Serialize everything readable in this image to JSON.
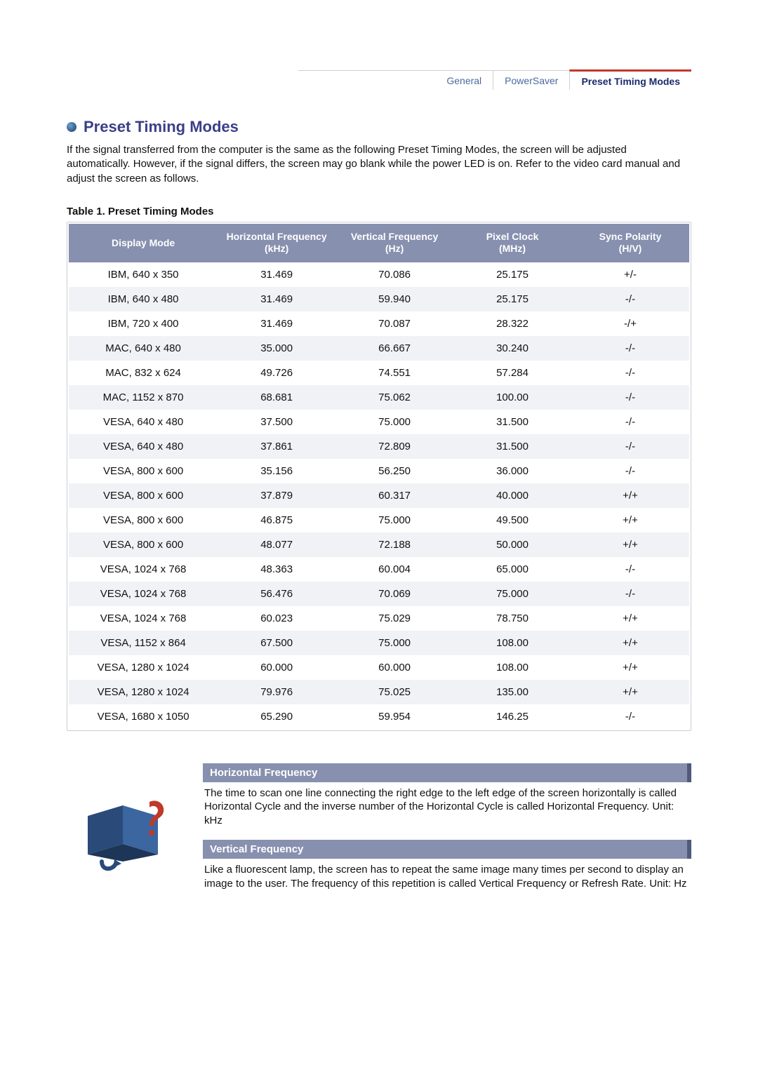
{
  "tabs": {
    "items": [
      {
        "label": "General",
        "active": false
      },
      {
        "label": "PowerSaver",
        "active": false
      },
      {
        "label": "Preset Timing Modes",
        "active": true
      }
    ]
  },
  "heading": "Preset Timing Modes",
  "intro": "If the signal transferred from the computer is the same as the following Preset Timing Modes, the screen will be adjusted automatically. However, if the signal differs, the screen may go blank while the power LED is on. Refer to the video card manual and adjust the screen as follows.",
  "table": {
    "caption": "Table 1. Preset Timing Modes",
    "header_bg": "#8790ae",
    "header_fg": "#ffffff",
    "row_alt_bg": "#f1f2f6",
    "columns": [
      "Display Mode",
      "Horizontal Frequency (kHz)",
      "Vertical Frequency (Hz)",
      "Pixel Clock (MHz)",
      "Sync Polarity (H/V)"
    ],
    "col_widths": [
      "24%",
      "19%",
      "19%",
      "19%",
      "19%"
    ],
    "rows": [
      [
        "IBM, 640 x 350",
        "31.469",
        "70.086",
        "25.175",
        "+/-"
      ],
      [
        "IBM, 640 x 480",
        "31.469",
        "59.940",
        "25.175",
        "-/-"
      ],
      [
        "IBM, 720 x 400",
        "31.469",
        "70.087",
        "28.322",
        "-/+"
      ],
      [
        "MAC, 640 x 480",
        "35.000",
        "66.667",
        "30.240",
        "-/-"
      ],
      [
        "MAC, 832 x 624",
        "49.726",
        "74.551",
        "57.284",
        "-/-"
      ],
      [
        "MAC, 1152 x 870",
        "68.681",
        "75.062",
        "100.00",
        "-/-"
      ],
      [
        "VESA, 640 x 480",
        "37.500",
        "75.000",
        "31.500",
        "-/-"
      ],
      [
        "VESA, 640 x 480",
        "37.861",
        "72.809",
        "31.500",
        "-/-"
      ],
      [
        "VESA, 800 x 600",
        "35.156",
        "56.250",
        "36.000",
        "-/-"
      ],
      [
        "VESA, 800 x 600",
        "37.879",
        "60.317",
        "40.000",
        "+/+"
      ],
      [
        "VESA, 800 x 600",
        "46.875",
        "75.000",
        "49.500",
        "+/+"
      ],
      [
        "VESA, 800 x 600",
        "48.077",
        "72.188",
        "50.000",
        "+/+"
      ],
      [
        "VESA, 1024 x 768",
        "48.363",
        "60.004",
        "65.000",
        "-/-"
      ],
      [
        "VESA, 1024 x 768",
        "56.476",
        "70.069",
        "75.000",
        "-/-"
      ],
      [
        "VESA, 1024 x 768",
        "60.023",
        "75.029",
        "78.750",
        "+/+"
      ],
      [
        "VESA, 1152 x 864",
        "67.500",
        "75.000",
        "108.00",
        "+/+"
      ],
      [
        "VESA, 1280 x 1024",
        "60.000",
        "60.000",
        "108.00",
        "+/+"
      ],
      [
        "VESA, 1280 x 1024",
        "79.976",
        "75.025",
        "135.00",
        "+/+"
      ],
      [
        "VESA, 1680 x 1050",
        "65.290",
        "59.954",
        "146.25",
        "-/-"
      ]
    ]
  },
  "defs": [
    {
      "title": "Horizontal Frequency",
      "text": "The time to scan one line connecting the right edge to the left edge of the screen horizontally is called Horizontal Cycle and the inverse number of the Horizontal Cycle is called Horizontal Frequency. Unit: kHz"
    },
    {
      "title": "Vertical Frequency",
      "text": "Like a fluorescent lamp, the screen has to repeat the same image many times per second to display an image to the user. The frequency of this repetition is called Vertical Frequency or Refresh Rate. Unit: Hz"
    }
  ],
  "colors": {
    "heading": "#3a3f88",
    "def_bar_bg": "#8790ae",
    "def_bar_accent": "#4f5b7c"
  }
}
